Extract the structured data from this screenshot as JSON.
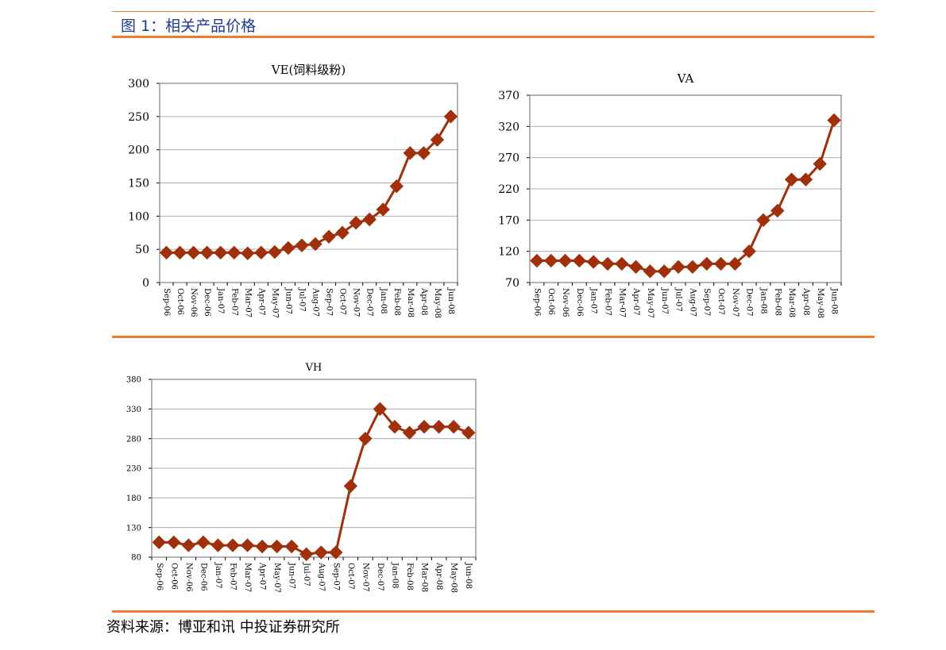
{
  "figure_title": "图 1：相关产品价格",
  "source": "资料来源：博亚和讯 中投证券研究所",
  "colors": {
    "series": "#a0300c",
    "rule": "#f07a2e",
    "title": "#1f3a93",
    "grid": "#b0b0b0"
  },
  "chart_data": [
    {
      "type": "line",
      "title": "VE(饲料级粉)",
      "x": [
        "Sep-06",
        "Oct-06",
        "Nov-06",
        "Dec-06",
        "Jan-07",
        "Feb-07",
        "Mar-07",
        "Apr-07",
        "May-07",
        "Jun-07",
        "Jul-07",
        "Aug-07",
        "Sep-07",
        "Oct-07",
        "Nov-07",
        "Dec-07",
        "Jan-08",
        "Feb-08",
        "Mar-08",
        "Apr-08",
        "May-08",
        "Jun-08"
      ],
      "series": [
        {
          "values": [
            45,
            45,
            45,
            45,
            45,
            45,
            44,
            45,
            46,
            52,
            56,
            58,
            69,
            75,
            90,
            95,
            110,
            145,
            195,
            195,
            215,
            250
          ]
        }
      ],
      "ylim": [
        0,
        300
      ],
      "yticks": [
        0,
        50,
        100,
        150,
        200,
        250,
        300
      ],
      "grid": true,
      "legend": false
    },
    {
      "type": "line",
      "title": "VA",
      "x": [
        "Sep-06",
        "Oct-06",
        "Nov-06",
        "Dec-06",
        "Jan-07",
        "Feb-07",
        "Mar-07",
        "Apr-07",
        "May-07",
        "Jun-07",
        "Jul-07",
        "Aug-07",
        "Sep-07",
        "Oct-07",
        "Nov-07",
        "Dec-07",
        "Jan-08",
        "Feb-08",
        "Mar-08",
        "Apr-08",
        "May-08",
        "Jun-08"
      ],
      "series": [
        {
          "values": [
            105,
            105,
            105,
            105,
            103,
            100,
            100,
            95,
            88,
            88,
            95,
            95,
            100,
            100,
            100,
            120,
            170,
            185,
            235,
            235,
            260,
            330
          ]
        }
      ],
      "ylim": [
        70,
        370
      ],
      "yticks": [
        70,
        120,
        170,
        220,
        270,
        320,
        370
      ],
      "grid": true,
      "legend": false
    },
    {
      "type": "line",
      "title": "VH",
      "x": [
        "Sep-06",
        "Oct-06",
        "Nov-06",
        "Dec-06",
        "Jan-07",
        "Feb-07",
        "Mar-07",
        "Apr-07",
        "May-07",
        "Jun-07",
        "Jul-07",
        "Aug-07",
        "Sep-07",
        "Oct-07",
        "Nov-07",
        "Dec-07",
        "Jan-08",
        "Feb-08",
        "Mar-08",
        "Apr-08",
        "May-08",
        "Jun-08"
      ],
      "series": [
        {
          "values": [
            105,
            105,
            100,
            105,
            100,
            100,
            100,
            98,
            98,
            98,
            85,
            88,
            88,
            200,
            280,
            330,
            300,
            290,
            300,
            300,
            300,
            290
          ]
        }
      ],
      "ylim": [
        80,
        380
      ],
      "yticks": [
        80,
        130,
        180,
        230,
        280,
        330,
        380
      ],
      "grid": true,
      "legend": false
    }
  ]
}
